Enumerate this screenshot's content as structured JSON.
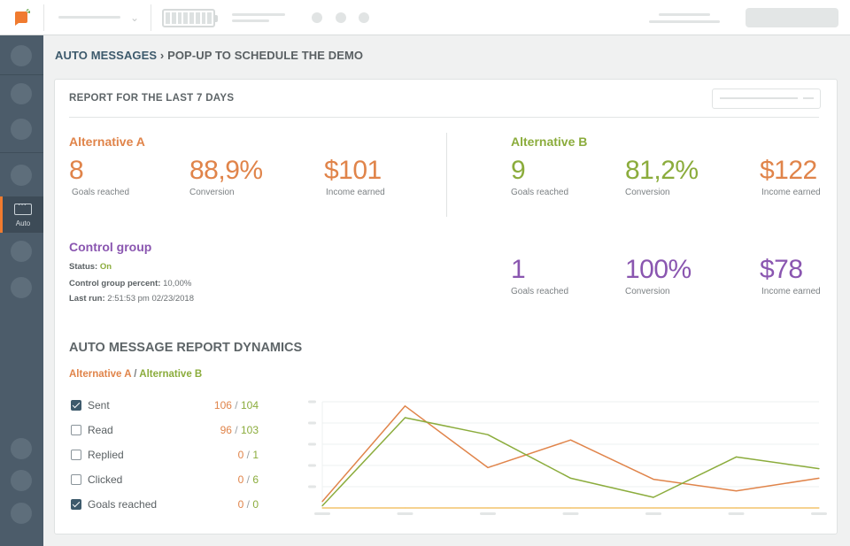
{
  "breadcrumb": {
    "root": "AUTO MESSAGES",
    "current": "› POP-UP TO SCHEDULE THE DEMO"
  },
  "sidebar": {
    "active_label": "Auto"
  },
  "report": {
    "title": "REPORT FOR THE LAST 7 DAYS"
  },
  "alternative_a": {
    "title": "Alternative A",
    "goals": "8",
    "goals_label": "Goals reached",
    "conversion": "88,9%",
    "conversion_label": "Conversion",
    "income": "$101",
    "income_label": "Income earned"
  },
  "alternative_b": {
    "title": "Alternative B",
    "goals": "9",
    "goals_label": "Goals reached",
    "conversion": "81,2%",
    "conversion_label": "Conversion",
    "income": "$122",
    "income_label": "Income earned"
  },
  "control_group": {
    "title": "Control group",
    "status_label": "Status:",
    "status_value": "On",
    "percent_label": "Control group percent:",
    "percent_value": "10,00%",
    "last_run_label": "Last run:",
    "last_run_value": "2:51:53 pm 02/23/2018",
    "goals": "1",
    "goals_label": "Goals reached",
    "conversion": "100%",
    "conversion_label": "Conversion",
    "income": "$78",
    "income_label": "Income earned"
  },
  "dynamics": {
    "title": "AUTO MESSAGE REPORT DYNAMICS",
    "legend_a": "Alternative A",
    "legend_sep": "/",
    "legend_b": "Alternative B",
    "metrics": [
      {
        "name": "Sent",
        "checked": true,
        "a": "106",
        "b": "104"
      },
      {
        "name": "Read",
        "checked": false,
        "a": "96",
        "b": "103"
      },
      {
        "name": "Replied",
        "checked": false,
        "a": "0",
        "b": "1"
      },
      {
        "name": "Clicked",
        "checked": false,
        "a": "0",
        "b": "6"
      },
      {
        "name": "Goals reached",
        "checked": true,
        "a": "0",
        "b": "0"
      }
    ]
  },
  "colors": {
    "alt_a": "#e0844a",
    "alt_b": "#8bac3c",
    "control": "#8a56b0",
    "accent": "#f07b2f",
    "goals_line": "#f3c46b"
  },
  "chart_data": {
    "type": "line",
    "x": [
      1,
      2,
      3,
      4,
      5,
      6,
      7
    ],
    "ylim": [
      0,
      10
    ],
    "grid": true,
    "series": [
      {
        "values": [
          0.6,
          9.6,
          3.8,
          6.4,
          2.7,
          1.6,
          2.8
        ]
      },
      {
        "values": [
          0.2,
          8.5,
          6.9,
          2.8,
          1.0,
          4.8,
          3.7
        ]
      },
      {
        "values": [
          0,
          0,
          0,
          0,
          0,
          0,
          0
        ]
      }
    ]
  }
}
